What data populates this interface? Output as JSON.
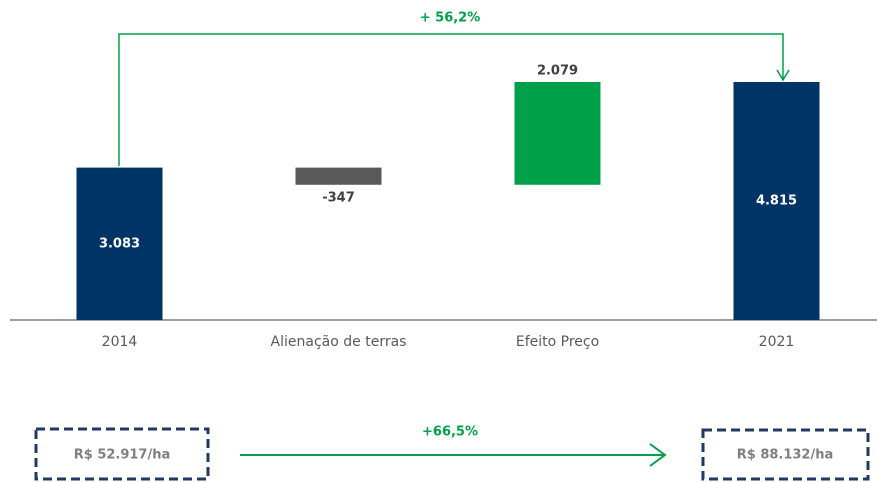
{
  "chart_data": {
    "type": "waterfall",
    "categories": [
      "2014",
      "Alienação de terras",
      "Efeito Preço",
      "2021"
    ],
    "values": [
      3083,
      -347,
      2079,
      4815
    ],
    "value_labels": [
      "3.083",
      "-347",
      "2.079",
      "4.815"
    ],
    "colors": [
      "#003366",
      "#595959",
      "#00a04a",
      "#003366"
    ],
    "annotation": "+ 56,2%",
    "comparison": {
      "from": "R$ 52.917/ha",
      "change": "+66,5%",
      "to": "R$ 88.132/ha"
    }
  }
}
